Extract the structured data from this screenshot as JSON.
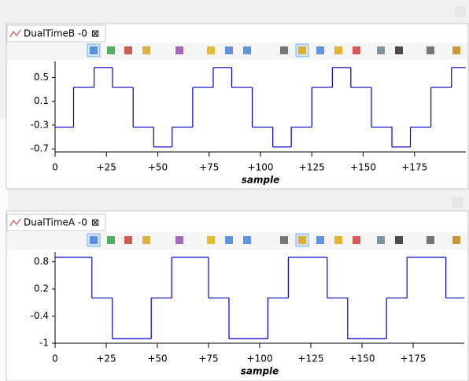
{
  "chart_data": [
    {
      "type": "step",
      "title": "DualTimeB -0",
      "x_label": "sample",
      "color": "#0000cc",
      "x": [
        0,
        9,
        19,
        28,
        38,
        48,
        57,
        67,
        77,
        86,
        96,
        106,
        115,
        125,
        135,
        144,
        154,
        164,
        173,
        183,
        193
      ],
      "values": [
        -0.333,
        0.333,
        0.667,
        0.333,
        -0.333,
        -0.667,
        -0.333,
        0.333,
        0.667,
        0.333,
        -0.333,
        -0.667,
        -0.333,
        0.333,
        0.667,
        0.333,
        -0.333,
        -0.667,
        -0.333,
        0.333,
        0.667
      ],
      "xlim": [
        0,
        200
      ],
      "xticks": [
        0,
        {
          "value": 25,
          "label": "+25"
        },
        {
          "value": 50,
          "label": "+50"
        },
        {
          "value": 75,
          "label": "+75"
        },
        {
          "value": 100,
          "label": "+100"
        },
        {
          "value": 125,
          "label": "+125"
        },
        {
          "value": 150,
          "label": "+150"
        },
        {
          "value": 175,
          "label": "+175"
        }
      ],
      "ylim": [
        -0.75,
        0.77
      ],
      "yticks": [
        0.5,
        0.1,
        -0.3,
        -0.7
      ]
    },
    {
      "type": "step",
      "title": "DualTimeA -0",
      "x_label": "sample",
      "color": "#0000cc",
      "x": [
        0,
        18,
        28,
        47,
        57,
        75,
        85,
        104,
        114,
        133,
        143,
        162,
        172,
        191
      ],
      "values": [
        0.9,
        0,
        -0.9,
        0,
        0.9,
        0,
        -0.9,
        0,
        0.9,
        0,
        -0.9,
        0,
        0.9,
        0
      ],
      "xlim": [
        0,
        200
      ],
      "xticks": [
        0,
        {
          "value": 25,
          "label": "+25"
        },
        {
          "value": 50,
          "label": "+50"
        },
        {
          "value": 75,
          "label": "+75"
        },
        {
          "value": 100,
          "label": "+100"
        },
        {
          "value": 125,
          "label": "+125"
        },
        {
          "value": 150,
          "label": "+150"
        },
        {
          "value": 175,
          "label": "+175"
        }
      ],
      "ylim": [
        -1,
        1.02
      ],
      "yticks": [
        0.8,
        0.2,
        -0.4,
        -1
      ]
    }
  ]
}
